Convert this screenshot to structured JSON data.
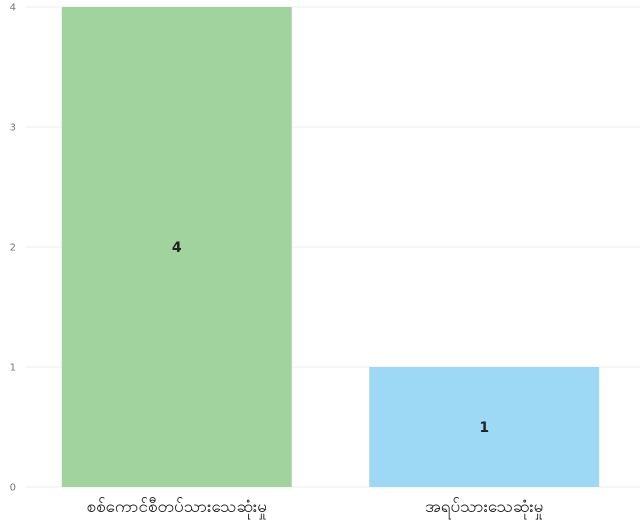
{
  "chart_data": {
    "type": "bar",
    "categories": [
      "စစ်ကောင်စီတပ်သားသေဆုံးမှု",
      "အရပ်သားသေဆုံးမှု"
    ],
    "series": [
      {
        "values": [
          4,
          1
        ]
      }
    ],
    "bar_colors": [
      "#a0d39e",
      "#9dd8f5"
    ],
    "ylim": [
      0,
      4
    ],
    "yticks": [
      "0",
      "1",
      "2",
      "3",
      "4"
    ],
    "data_labels": [
      "4",
      "1"
    ],
    "grid": true,
    "legend": "none",
    "title": "",
    "xlabel": "",
    "ylabel": ""
  }
}
